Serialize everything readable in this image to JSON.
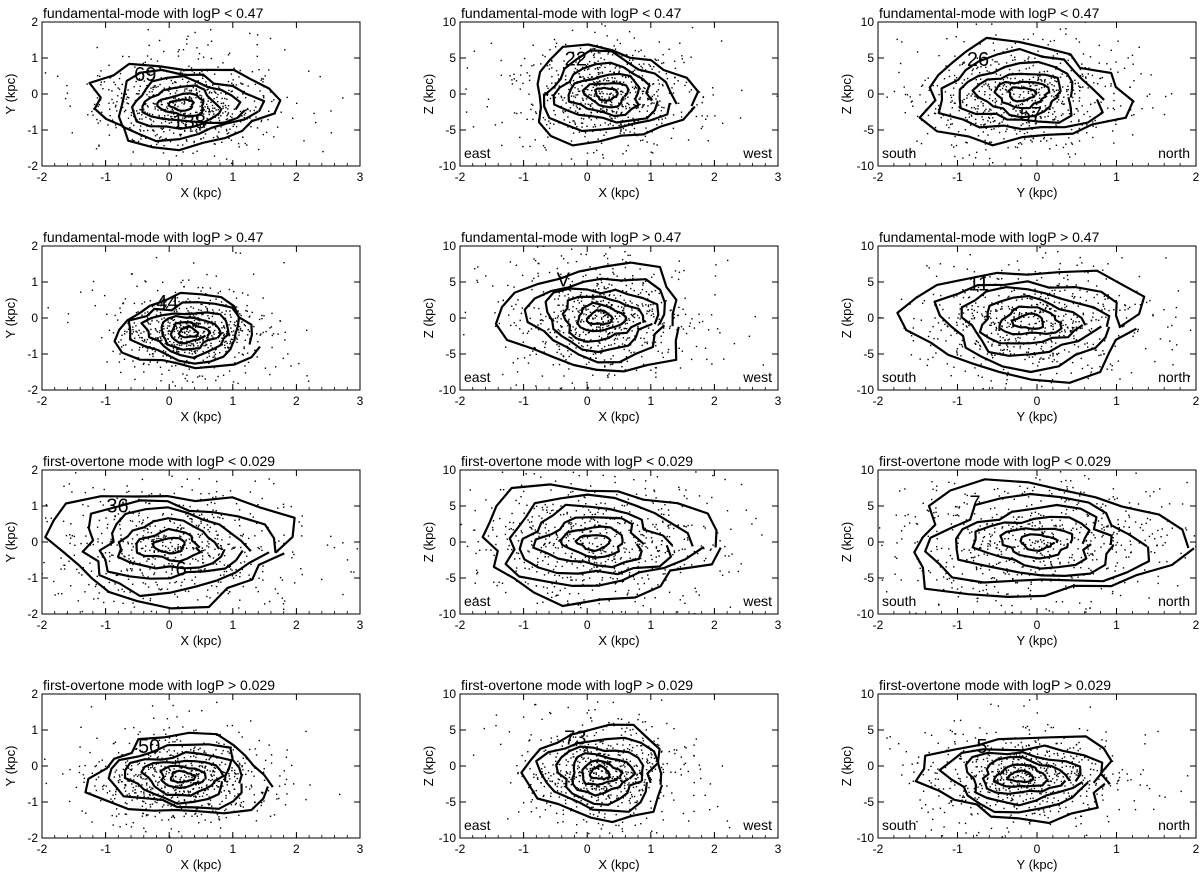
{
  "chart_data": [
    {
      "type": "scatter",
      "title": "fundamental-mode with logP < 0.47",
      "xlabel": "X (kpc)",
      "ylabel": "Y (kpc)",
      "xlim": [
        -2,
        3
      ],
      "ylim": [
        -2,
        2
      ],
      "xticks": [
        -2,
        -1,
        0,
        1,
        2,
        3
      ],
      "yticks": [
        -2,
        -1,
        0,
        1,
        2
      ],
      "corner_labels": [],
      "contour_labels": [
        "69",
        "138"
      ],
      "center": [
        0.2,
        -0.3
      ],
      "spread": [
        0.7,
        0.6
      ],
      "tilt": -20
    },
    {
      "type": "scatter",
      "title": "fundamental-mode with logP < 0.47",
      "xlabel": "X (kpc)",
      "ylabel": "Z (kpc)",
      "xlim": [
        -2,
        3
      ],
      "ylim": [
        -10,
        10
      ],
      "xticks": [
        -2,
        -1,
        0,
        1,
        2,
        3
      ],
      "yticks": [
        -10,
        -5,
        0,
        5,
        10
      ],
      "corner_labels": [
        "east",
        "west"
      ],
      "contour_labels": [
        "22"
      ],
      "center": [
        0.3,
        0
      ],
      "spread": [
        0.65,
        3.5
      ],
      "tilt": -25
    },
    {
      "type": "scatter",
      "title": "fundamental-mode with logP < 0.47",
      "xlabel": "Y (kpc)",
      "ylabel": "Z (kpc)",
      "xlim": [
        -2,
        2
      ],
      "ylim": [
        -10,
        10
      ],
      "xticks": [
        -2,
        -1,
        0,
        1,
        2
      ],
      "yticks": [
        -10,
        -5,
        0,
        5,
        10
      ],
      "corner_labels": [
        "south",
        "north"
      ],
      "contour_labels": [
        "26",
        "57"
      ],
      "center": [
        -0.2,
        0
      ],
      "spread": [
        0.6,
        3.5
      ],
      "tilt": -15
    },
    {
      "type": "scatter",
      "title": "fundamental-mode with logP > 0.47",
      "xlabel": "X (kpc)",
      "ylabel": "Y (kpc)",
      "xlim": [
        -2,
        3
      ],
      "ylim": [
        -2,
        2
      ],
      "xticks": [
        -2,
        -1,
        0,
        1,
        2,
        3
      ],
      "yticks": [
        -2,
        -1,
        0,
        1,
        2
      ],
      "corner_labels": [],
      "contour_labels": [
        "44"
      ],
      "center": [
        0.3,
        -0.4
      ],
      "spread": [
        0.6,
        0.6
      ],
      "tilt": -35
    },
    {
      "type": "scatter",
      "title": "fundamental-mode with logP > 0.47",
      "xlabel": "X (kpc)",
      "ylabel": "Z (kpc)",
      "xlim": [
        -2,
        3
      ],
      "ylim": [
        -10,
        10
      ],
      "xticks": [
        -2,
        -1,
        0,
        1,
        2,
        3
      ],
      "yticks": [
        -10,
        -5,
        0,
        5,
        10
      ],
      "corner_labels": [
        "east",
        "west"
      ],
      "contour_labels": [
        "V"
      ],
      "center": [
        0.2,
        0
      ],
      "spread": [
        0.7,
        3.8
      ],
      "tilt": -20
    },
    {
      "type": "scatter",
      "title": "fundamental-mode with logP > 0.47",
      "xlabel": "Y (kpc)",
      "ylabel": "Z (kpc)",
      "xlim": [
        -2,
        2
      ],
      "ylim": [
        -10,
        10
      ],
      "xticks": [
        -2,
        -1,
        0,
        1,
        2
      ],
      "yticks": [
        -10,
        -5,
        0,
        5,
        10
      ],
      "corner_labels": [
        "south",
        "north"
      ],
      "contour_labels": [
        "11"
      ],
      "center": [
        -0.1,
        -0.5
      ],
      "spread": [
        0.7,
        3.8
      ],
      "tilt": -15
    },
    {
      "type": "scatter",
      "title": "first-overtone mode with logP < 0.029",
      "xlabel": "X (kpc)",
      "ylabel": "Y (kpc)",
      "xlim": [
        -2,
        3
      ],
      "ylim": [
        -2,
        2
      ],
      "xticks": [
        -2,
        -1,
        0,
        1,
        2,
        3
      ],
      "yticks": [
        -2,
        -1,
        0,
        1,
        2
      ],
      "corner_labels": [],
      "contour_labels": [
        "36",
        "6"
      ],
      "center": [
        0.0,
        -0.1
      ],
      "spread": [
        0.9,
        0.8
      ],
      "tilt": -15
    },
    {
      "type": "scatter",
      "title": "first-overtone mode with logP < 0.029",
      "xlabel": "X (kpc)",
      "ylabel": "Z (kpc)",
      "xlim": [
        -2,
        3
      ],
      "ylim": [
        -10,
        10
      ],
      "xticks": [
        -2,
        -1,
        0,
        1,
        2,
        3
      ],
      "yticks": [
        -10,
        -5,
        0,
        5,
        10
      ],
      "corner_labels": [
        "east",
        "west"
      ],
      "contour_labels": [],
      "center": [
        0.1,
        0
      ],
      "spread": [
        0.9,
        4
      ],
      "tilt": -10
    },
    {
      "type": "scatter",
      "title": "first-overtone mode with logP < 0.029",
      "xlabel": "Y (kpc)",
      "ylabel": "Z (kpc)",
      "xlim": [
        -2,
        2
      ],
      "ylim": [
        -10,
        10
      ],
      "xticks": [
        -2,
        -1,
        0,
        1,
        2
      ],
      "yticks": [
        -10,
        -5,
        0,
        5,
        10
      ],
      "corner_labels": [
        "south",
        "north"
      ],
      "contour_labels": [
        "7"
      ],
      "center": [
        0.0,
        0
      ],
      "spread": [
        0.8,
        4
      ],
      "tilt": -10
    },
    {
      "type": "scatter",
      "title": "first-overtone mode with logP > 0.029",
      "xlabel": "X (kpc)",
      "ylabel": "Y (kpc)",
      "xlim": [
        -2,
        3
      ],
      "ylim": [
        -2,
        2
      ],
      "xticks": [
        -2,
        -1,
        0,
        1,
        2,
        3
      ],
      "yticks": [
        -2,
        -1,
        0,
        1,
        2
      ],
      "corner_labels": [],
      "contour_labels": [
        "50"
      ],
      "center": [
        0.2,
        -0.3
      ],
      "spread": [
        0.7,
        0.6
      ],
      "tilt": -25
    },
    {
      "type": "scatter",
      "title": "first-overtone mode with logP > 0.029",
      "xlabel": "X (kpc)",
      "ylabel": "Z (kpc)",
      "xlim": [
        -2,
        3
      ],
      "ylim": [
        -10,
        10
      ],
      "xticks": [
        -2,
        -1,
        0,
        1,
        2,
        3
      ],
      "yticks": [
        -10,
        -5,
        0,
        5,
        10
      ],
      "corner_labels": [
        "east",
        "west"
      ],
      "contour_labels": [
        "73"
      ],
      "center": [
        0.2,
        -1
      ],
      "spread": [
        0.6,
        3.5
      ],
      "tilt": -30
    },
    {
      "type": "scatter",
      "title": "first-overtone mode with logP > 0.029",
      "xlabel": "Y (kpc)",
      "ylabel": "Z (kpc)",
      "xlim": [
        -2,
        2
      ],
      "ylim": [
        -10,
        10
      ],
      "xticks": [
        -2,
        -1,
        0,
        1,
        2
      ],
      "yticks": [
        -10,
        -5,
        0,
        5,
        10
      ],
      "corner_labels": [
        "south",
        "north"
      ],
      "contour_labels": [
        "5"
      ],
      "center": [
        -0.2,
        -1.5
      ],
      "spread": [
        0.6,
        3
      ],
      "tilt": -20
    }
  ]
}
